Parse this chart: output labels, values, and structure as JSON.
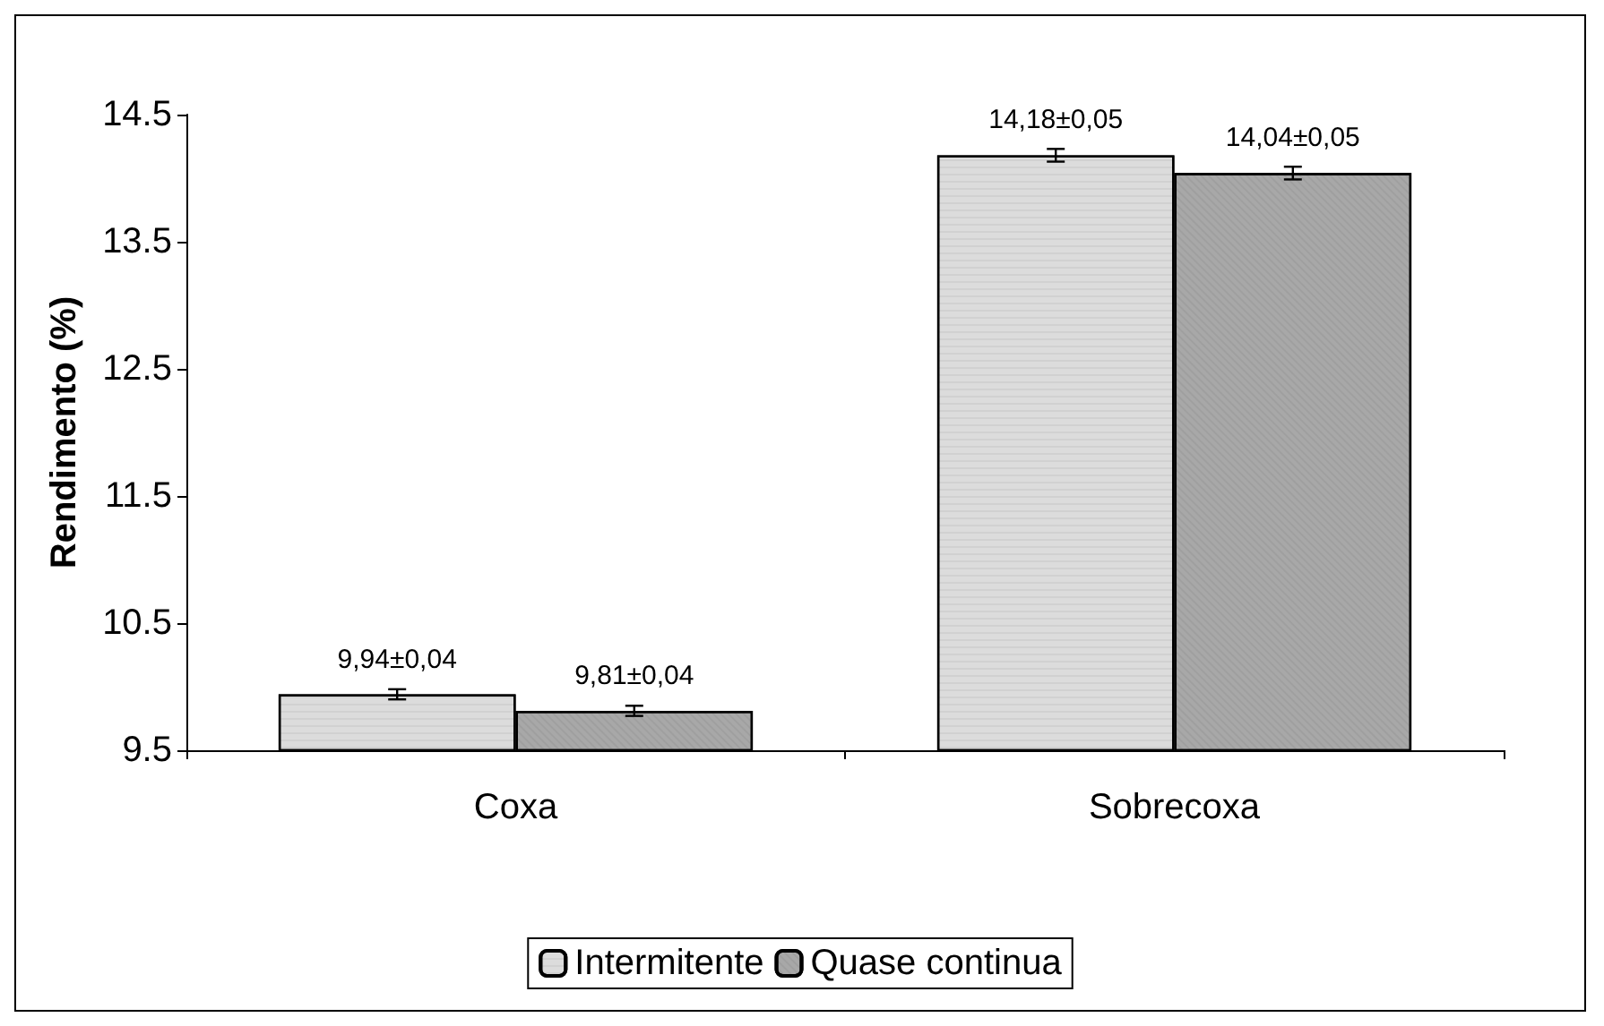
{
  "chart_data": {
    "type": "bar",
    "ylabel": "Rendimento (%)",
    "categories": [
      "Coxa",
      "Sobrecoxa"
    ],
    "series": [
      {
        "name": "Intermitente",
        "color": "#dcdcdc",
        "values": [
          9.94,
          14.18
        ],
        "errors": [
          0.04,
          0.05
        ],
        "value_labels": [
          "9,94±0,04",
          "14,18±0,05"
        ]
      },
      {
        "name": "Quase continua",
        "color": "#a8a8a8",
        "values": [
          9.81,
          14.04
        ],
        "errors": [
          0.04,
          0.05
        ],
        "value_labels": [
          "9,81±0,04",
          "14,04±0,05"
        ]
      }
    ],
    "ylim": [
      9.5,
      14.5
    ],
    "yticks": [
      9.5,
      10.5,
      11.5,
      12.5,
      13.5,
      14.5
    ],
    "grid": false,
    "legend": "bottom"
  }
}
